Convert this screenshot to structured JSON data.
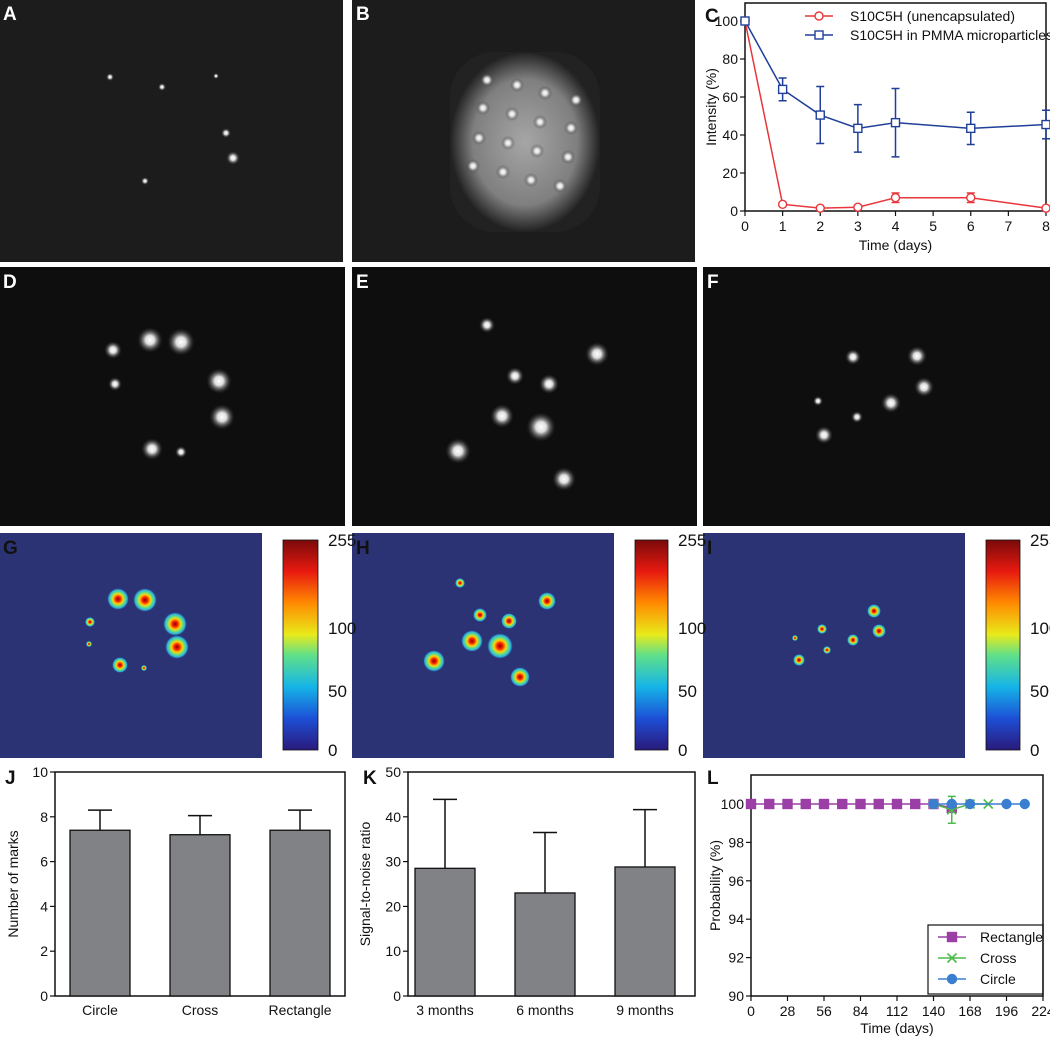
{
  "panel_labels": [
    "A",
    "B",
    "C",
    "D",
    "E",
    "F",
    "G",
    "H",
    "I",
    "J",
    "K",
    "L"
  ],
  "colors": {
    "red": "#e8363a",
    "blue": "#1f3f99",
    "bar": "#808285",
    "purple": "#9b3fa6",
    "green": "#4dbb4a",
    "lightblue": "#3a7fcf",
    "heat_bg": "#2c3375"
  },
  "colorbar": {
    "ticks": [
      "255",
      "100",
      "50",
      "0"
    ],
    "tick_values": [
      255,
      100,
      50,
      0
    ]
  },
  "chart_data": [
    {
      "id": "C",
      "type": "line",
      "xlabel": "Time (days)",
      "ylabel": "Intensity (%)",
      "xlim": [
        0,
        8
      ],
      "ylim": [
        0,
        100
      ],
      "xticks": [
        "0",
        "1",
        "2",
        "3",
        "4",
        "5",
        "6",
        "7",
        "8"
      ],
      "yticks": [
        "0",
        "20",
        "40",
        "60",
        "80",
        "100"
      ],
      "legend": "top-right",
      "series": [
        {
          "name": "S10C5H (unencapsulated)",
          "marker": "circle",
          "x": [
            0,
            1,
            2,
            3,
            4,
            6,
            8
          ],
          "y": [
            100,
            3.5,
            1.5,
            2,
            7,
            7,
            1.5
          ],
          "err": [
            0,
            0,
            0,
            0,
            2.5,
            2.5,
            0
          ]
        },
        {
          "name": "S10C5H in PMMA microparticles",
          "marker": "square",
          "x": [
            0,
            1,
            2,
            3,
            4,
            6,
            8
          ],
          "y": [
            100,
            64,
            50.5,
            43.5,
            46.5,
            43.5,
            45.5
          ],
          "err": [
            0,
            6,
            15,
            12.5,
            18,
            8.5,
            7.5
          ]
        }
      ]
    },
    {
      "id": "J",
      "type": "bar",
      "categories": [
        "Circle",
        "Cross",
        "Rectangle"
      ],
      "values": [
        7.4,
        7.2,
        7.4
      ],
      "err": [
        0.9,
        0.85,
        0.9
      ],
      "xlabel": "",
      "ylabel": "Number of marks",
      "ylim": [
        0,
        10
      ],
      "yticks": [
        "0",
        "2",
        "4",
        "6",
        "8",
        "10"
      ]
    },
    {
      "id": "K",
      "type": "bar",
      "categories": [
        "3 months",
        "6 months",
        "9 months"
      ],
      "values": [
        28.5,
        23,
        28.8
      ],
      "err": [
        15.4,
        13.5,
        12.8
      ],
      "xlabel": "",
      "ylabel": "Signal-to-noise ratio",
      "ylim": [
        0,
        50
      ],
      "yticks": [
        "0",
        "10",
        "20",
        "30",
        "40",
        "50"
      ]
    },
    {
      "id": "L",
      "type": "line",
      "xlabel": "Time (days)",
      "ylabel": "Probability (%)",
      "xlim": [
        0,
        224
      ],
      "ylim": [
        90,
        101.5
      ],
      "xticks": [
        "0",
        "28",
        "56",
        "84",
        "112",
        "140",
        "168",
        "196",
        "224"
      ],
      "yticks": [
        "90",
        "92",
        "94",
        "96",
        "98",
        "100"
      ],
      "legend": "bottom-right",
      "series": [
        {
          "name": "Rectangle",
          "marker": "square",
          "x": [
            0,
            14,
            28,
            42,
            56,
            70,
            84,
            98,
            112,
            126,
            140,
            154
          ],
          "y": [
            100,
            100,
            100,
            100,
            100,
            100,
            100,
            100,
            100,
            100,
            100,
            99.8
          ],
          "err": [
            0,
            0,
            0,
            0,
            0,
            0,
            0,
            0,
            0,
            0,
            0,
            0
          ]
        },
        {
          "name": "Cross",
          "marker": "x",
          "x": [
            140,
            154,
            168,
            182
          ],
          "y": [
            100,
            99.7,
            100,
            100
          ],
          "err": [
            0,
            0.7,
            0,
            0
          ]
        },
        {
          "name": "Circle",
          "marker": "circle",
          "x": [
            140,
            154,
            168,
            196,
            210
          ],
          "y": [
            100,
            100,
            100,
            100,
            100
          ],
          "err": [
            0,
            0,
            0,
            0,
            0
          ]
        }
      ]
    }
  ]
}
